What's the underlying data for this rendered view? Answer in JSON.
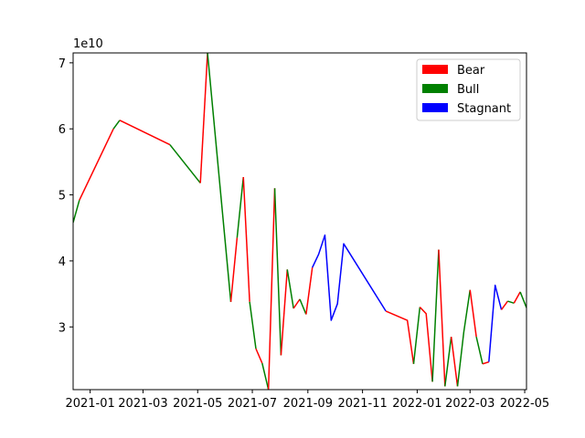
{
  "chart_data": {
    "type": "line",
    "title": "",
    "xlabel": "",
    "ylabel": "",
    "y_offset_text": "1e10",
    "xlim": [
      "2020-12-13",
      "2022-05-03"
    ],
    "ylim": [
      2.05,
      7.15
    ],
    "x_ticks": [
      {
        "date": "2021-01-01",
        "label": "2021-01"
      },
      {
        "date": "2021-03-01",
        "label": "2021-03"
      },
      {
        "date": "2021-05-01",
        "label": "2021-05"
      },
      {
        "date": "2021-07-01",
        "label": "2021-07"
      },
      {
        "date": "2021-09-01",
        "label": "2021-09"
      },
      {
        "date": "2021-11-01",
        "label": "2021-11"
      },
      {
        "date": "2022-01-01",
        "label": "2022-01"
      },
      {
        "date": "2022-03-01",
        "label": "2022-03"
      },
      {
        "date": "2022-05-01",
        "label": "2022-05"
      }
    ],
    "y_ticks": [
      3,
      4,
      5,
      6,
      7
    ],
    "grid": false,
    "legend_position": "top-right",
    "legend": [
      {
        "name": "Bear",
        "color": "#ff0000"
      },
      {
        "name": "Bull",
        "color": "#008000"
      },
      {
        "name": "Stagnant",
        "color": "#0000ff"
      }
    ],
    "segments": [
      {
        "state": "Bull",
        "points": [
          [
            "2020-12-13",
            4.58
          ],
          [
            "2020-12-20",
            4.92
          ]
        ]
      },
      {
        "state": "Bear",
        "points": [
          [
            "2020-12-20",
            4.92
          ],
          [
            "2021-01-27",
            6.0
          ]
        ]
      },
      {
        "state": "Bull",
        "points": [
          [
            "2021-01-27",
            6.0
          ],
          [
            "2021-02-03",
            6.13
          ]
        ]
      },
      {
        "state": "Bear",
        "points": [
          [
            "2021-02-03",
            6.13
          ],
          [
            "2021-03-31",
            5.76
          ]
        ]
      },
      {
        "state": "Bull",
        "points": [
          [
            "2021-03-31",
            5.76
          ],
          [
            "2021-05-04",
            5.18
          ]
        ]
      },
      {
        "state": "Bear",
        "points": [
          [
            "2021-05-04",
            5.18
          ],
          [
            "2021-05-12",
            7.15
          ]
        ]
      },
      {
        "state": "Bull",
        "points": [
          [
            "2021-05-12",
            7.15
          ],
          [
            "2021-06-07",
            3.38
          ]
        ]
      },
      {
        "state": "Bear",
        "points": [
          [
            "2021-06-07",
            3.38
          ],
          [
            "2021-06-14",
            4.35
          ]
        ]
      },
      {
        "state": "Bull",
        "points": [
          [
            "2021-06-14",
            4.35
          ],
          [
            "2021-06-21",
            5.27
          ]
        ]
      },
      {
        "state": "Bear",
        "points": [
          [
            "2021-06-21",
            5.27
          ],
          [
            "2021-06-28",
            3.38
          ]
        ]
      },
      {
        "state": "Bull",
        "points": [
          [
            "2021-06-28",
            3.38
          ],
          [
            "2021-07-05",
            2.67
          ]
        ]
      },
      {
        "state": "Bear",
        "points": [
          [
            "2021-07-05",
            2.67
          ],
          [
            "2021-07-12",
            2.45
          ]
        ]
      },
      {
        "state": "Bull",
        "points": [
          [
            "2021-07-12",
            2.45
          ],
          [
            "2021-07-19",
            2.05
          ]
        ]
      },
      {
        "state": "Bear",
        "points": [
          [
            "2021-07-19",
            2.05
          ],
          [
            "2021-07-26",
            5.1
          ]
        ]
      },
      {
        "state": "Bull",
        "points": [
          [
            "2021-07-26",
            5.1
          ],
          [
            "2021-08-02",
            2.57
          ]
        ]
      },
      {
        "state": "Bear",
        "points": [
          [
            "2021-08-02",
            2.57
          ],
          [
            "2021-08-09",
            3.87
          ]
        ]
      },
      {
        "state": "Bull",
        "points": [
          [
            "2021-08-09",
            3.87
          ],
          [
            "2021-08-16",
            3.28
          ]
        ]
      },
      {
        "state": "Bear",
        "points": [
          [
            "2021-08-16",
            3.28
          ],
          [
            "2021-08-23",
            3.42
          ]
        ]
      },
      {
        "state": "Bull",
        "points": [
          [
            "2021-08-23",
            3.42
          ],
          [
            "2021-08-30",
            3.19
          ]
        ]
      },
      {
        "state": "Bear",
        "points": [
          [
            "2021-08-30",
            3.19
          ],
          [
            "2021-09-06",
            3.9
          ]
        ]
      },
      {
        "state": "Stagnant",
        "points": [
          [
            "2021-09-06",
            3.9
          ],
          [
            "2021-09-13",
            4.1
          ],
          [
            "2021-09-20",
            4.39
          ],
          [
            "2021-09-27",
            3.1
          ],
          [
            "2021-10-04",
            3.35
          ],
          [
            "2021-10-11",
            4.26
          ],
          [
            "2021-11-27",
            3.24
          ]
        ]
      },
      {
        "state": "Bear",
        "points": [
          [
            "2021-11-27",
            3.24
          ],
          [
            "2021-12-21",
            3.1
          ],
          [
            "2021-12-28",
            2.44
          ]
        ]
      },
      {
        "state": "Bull",
        "points": [
          [
            "2021-12-28",
            2.44
          ],
          [
            "2022-01-04",
            3.3
          ]
        ]
      },
      {
        "state": "Bear",
        "points": [
          [
            "2022-01-04",
            3.3
          ],
          [
            "2022-01-11",
            3.2
          ],
          [
            "2022-01-18",
            2.17
          ]
        ]
      },
      {
        "state": "Bull",
        "points": [
          [
            "2022-01-18",
            2.17
          ],
          [
            "2022-01-25",
            4.17
          ]
        ]
      },
      {
        "state": "Bear",
        "points": [
          [
            "2022-01-25",
            4.17
          ],
          [
            "2022-02-01",
            2.1
          ]
        ]
      },
      {
        "state": "Bull",
        "points": [
          [
            "2022-02-01",
            2.1
          ],
          [
            "2022-02-08",
            2.85
          ]
        ]
      },
      {
        "state": "Bear",
        "points": [
          [
            "2022-02-08",
            2.85
          ],
          [
            "2022-02-15",
            2.1
          ]
        ]
      },
      {
        "state": "Bull",
        "points": [
          [
            "2022-02-15",
            2.1
          ],
          [
            "2022-02-22",
            2.92
          ],
          [
            "2022-03-01",
            3.56
          ]
        ]
      },
      {
        "state": "Bear",
        "points": [
          [
            "2022-03-01",
            3.56
          ],
          [
            "2022-03-08",
            2.85
          ]
        ]
      },
      {
        "state": "Bull",
        "points": [
          [
            "2022-03-08",
            2.85
          ],
          [
            "2022-03-15",
            2.44
          ]
        ]
      },
      {
        "state": "Bear",
        "points": [
          [
            "2022-03-15",
            2.44
          ],
          [
            "2022-03-22",
            2.47
          ]
        ]
      },
      {
        "state": "Stagnant",
        "points": [
          [
            "2022-03-22",
            2.47
          ],
          [
            "2022-03-29",
            3.63
          ],
          [
            "2022-04-05",
            3.26
          ]
        ]
      },
      {
        "state": "Bear",
        "points": [
          [
            "2022-04-05",
            3.26
          ],
          [
            "2022-04-12",
            3.39
          ]
        ]
      },
      {
        "state": "Bull",
        "points": [
          [
            "2022-04-12",
            3.39
          ],
          [
            "2022-04-19",
            3.36
          ]
        ]
      },
      {
        "state": "Bear",
        "points": [
          [
            "2022-04-19",
            3.36
          ],
          [
            "2022-04-26",
            3.53
          ]
        ]
      },
      {
        "state": "Bull",
        "points": [
          [
            "2022-04-26",
            3.53
          ],
          [
            "2022-05-03",
            3.29
          ]
        ]
      }
    ]
  }
}
